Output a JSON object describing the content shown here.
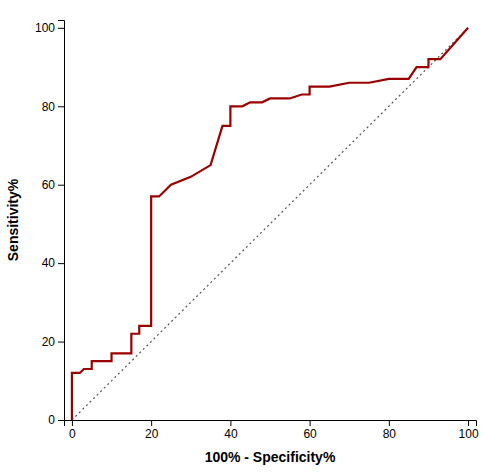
{
  "chart_data": {
    "type": "line",
    "xlabel": "100% - Specificity%",
    "ylabel": "Sensitivity%",
    "xlim": [
      -2,
      102
    ],
    "ylim": [
      0,
      102
    ],
    "xticks": [
      0,
      20,
      40,
      60,
      80,
      100
    ],
    "yticks": [
      0,
      20,
      40,
      60,
      80,
      100
    ],
    "grid": false,
    "series": [
      {
        "x": [
          0,
          100
        ],
        "values": [
          0,
          100
        ],
        "color": "#555555",
        "line_style": "dotted"
      },
      {
        "x": [
          0,
          0,
          2,
          3,
          5,
          5,
          7,
          9,
          10,
          10,
          12,
          14,
          15,
          15,
          17,
          17,
          18,
          20,
          20,
          22,
          25,
          30,
          35,
          38,
          40,
          40,
          43,
          45,
          48,
          50,
          55,
          58,
          60,
          60,
          65,
          70,
          75,
          80,
          85,
          87,
          90,
          90,
          93,
          100
        ],
        "values": [
          0,
          12,
          12,
          13,
          13,
          15,
          15,
          15,
          15,
          17,
          17,
          17,
          17,
          22,
          22,
          24,
          24,
          24,
          57,
          57,
          60,
          62,
          65,
          75,
          75,
          80,
          80,
          81,
          81,
          82,
          82,
          83,
          83,
          85,
          85,
          86,
          86,
          87,
          87,
          90,
          90,
          92,
          92,
          100
        ],
        "color": "#9B0000",
        "line_style": "solid"
      }
    ]
  }
}
